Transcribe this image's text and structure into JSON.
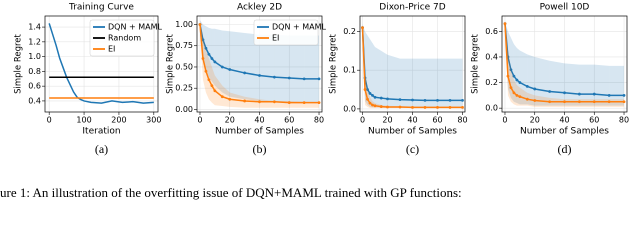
{
  "chart_data": [
    {
      "type": "line",
      "title": "Training Curve",
      "xlabel": "Iteration",
      "ylabel": "Simple Regret",
      "label": "(a)",
      "xlim": [
        -12,
        312
      ],
      "xticks": [
        0,
        100,
        200,
        300
      ],
      "ylim": [
        0.25,
        1.55
      ],
      "yticks": [
        {
          "value": 0.4,
          "label": "0.4"
        },
        {
          "value": 0.6,
          "label": "0.6"
        },
        {
          "value": 0.8,
          "label": "0.8"
        },
        {
          "value": 1.0,
          "label": "1.0"
        },
        {
          "value": 1.2,
          "label": "1.2"
        },
        {
          "value": 1.4,
          "label": "1.4"
        }
      ],
      "grid": true,
      "legend": "upper right",
      "series": [
        {
          "name": "DQN + MAML",
          "color": "#1f77b4",
          "x": [
            0,
            10,
            20,
            30,
            40,
            50,
            60,
            70,
            80,
            90,
            100,
            120,
            150,
            180,
            210,
            240,
            270,
            300
          ],
          "values": [
            1.45,
            1.3,
            1.15,
            0.98,
            0.85,
            0.72,
            0.62,
            0.52,
            0.45,
            0.42,
            0.4,
            0.38,
            0.37,
            0.4,
            0.38,
            0.39,
            0.37,
            0.38
          ]
        },
        {
          "name": "Random",
          "color": "#000000",
          "x": [
            0,
            300
          ],
          "values": [
            0.72,
            0.72
          ]
        },
        {
          "name": "EI",
          "color": "#ff7f0e",
          "x": [
            0,
            300
          ],
          "values": [
            0.44,
            0.44
          ]
        }
      ]
    },
    {
      "type": "line",
      "title": "Ackley 2D",
      "xlabel": "Number of Samples",
      "ylabel": "Simple Regret",
      "label": "(b)",
      "xlim": [
        -2,
        82
      ],
      "xticks": [
        0,
        20,
        40,
        60,
        80
      ],
      "ylim": [
        -0.03,
        1.1
      ],
      "yticks": [
        {
          "value": 0,
          "label": "0.00"
        },
        {
          "value": 0.25,
          "label": "0.25"
        },
        {
          "value": 0.5,
          "label": "0.50"
        },
        {
          "value": 0.75,
          "label": "0.75"
        },
        {
          "value": 1.0,
          "label": "1.00"
        }
      ],
      "grid": true,
      "legend": "upper right",
      "series": [
        {
          "name": "DQN + MAML",
          "color": "#1f77b4",
          "x": [
            0,
            2,
            4,
            6,
            8,
            10,
            15,
            20,
            30,
            40,
            50,
            60,
            70,
            80
          ],
          "values": [
            1.0,
            0.82,
            0.72,
            0.65,
            0.6,
            0.56,
            0.5,
            0.47,
            0.43,
            0.4,
            0.38,
            0.37,
            0.36,
            0.36
          ],
          "upper": [
            1.05,
            1.0,
            0.98,
            0.96,
            0.95,
            0.95,
            0.93,
            0.92,
            0.9,
            0.88,
            0.88,
            0.87,
            0.87,
            0.87
          ],
          "lower": [
            0.9,
            0.6,
            0.45,
            0.38,
            0.33,
            0.28,
            0.2,
            0.15,
            0.12,
            0.1,
            0.09,
            0.08,
            0.08,
            0.08
          ]
        },
        {
          "name": "EI",
          "color": "#ff7f0e",
          "x": [
            0,
            2,
            4,
            6,
            8,
            10,
            15,
            20,
            30,
            40,
            50,
            60,
            70,
            80
          ],
          "values": [
            1.0,
            0.6,
            0.45,
            0.35,
            0.28,
            0.22,
            0.15,
            0.12,
            0.1,
            0.09,
            0.09,
            0.08,
            0.08,
            0.08
          ],
          "upper": [
            1.05,
            0.85,
            0.7,
            0.6,
            0.5,
            0.4,
            0.28,
            0.2,
            0.15,
            0.12,
            0.1,
            0.1,
            0.09,
            0.09
          ],
          "lower": [
            0.9,
            0.35,
            0.2,
            0.12,
            0.08,
            0.05,
            0.04,
            0.03,
            0.02,
            0.02,
            0.02,
            0.02,
            0.02,
            0.02
          ]
        }
      ]
    },
    {
      "type": "line",
      "title": "Dixon-Price 7D",
      "xlabel": "Number of Samples",
      "ylabel": "Simple Regret",
      "label": "(c)",
      "xlim": [
        -2,
        82
      ],
      "xticks": [
        0,
        20,
        40,
        60,
        80
      ],
      "ylim": [
        -0.008,
        0.24
      ],
      "yticks": [
        {
          "value": 0,
          "label": "0.0"
        },
        {
          "value": 0.1,
          "label": "0.1"
        },
        {
          "value": 0.2,
          "label": "0.2"
        }
      ],
      "grid": true,
      "series": [
        {
          "name": "DQN + MAML",
          "color": "#1f77b4",
          "x": [
            0,
            2,
            4,
            6,
            8,
            10,
            15,
            20,
            30,
            40,
            50,
            60,
            70,
            80
          ],
          "values": [
            0.21,
            0.08,
            0.05,
            0.04,
            0.035,
            0.03,
            0.028,
            0.026,
            0.024,
            0.023,
            0.022,
            0.022,
            0.022,
            0.022
          ],
          "upper": [
            0.22,
            0.2,
            0.19,
            0.18,
            0.17,
            0.16,
            0.15,
            0.14,
            0.13,
            0.13,
            0.13,
            0.13,
            0.13,
            0.13
          ],
          "lower": [
            0.2,
            0.02,
            0.01,
            0.005,
            0.004,
            0.004,
            0.003,
            0.003,
            0.003,
            0.003,
            0.003,
            0.003,
            0.003,
            0.003
          ]
        },
        {
          "name": "EI",
          "color": "#ff7f0e",
          "x": [
            0,
            2,
            4,
            6,
            8,
            10,
            15,
            20,
            30,
            40,
            50,
            60,
            70,
            80
          ],
          "values": [
            0.21,
            0.05,
            0.025,
            0.015,
            0.01,
            0.008,
            0.006,
            0.005,
            0.005,
            0.004,
            0.004,
            0.004,
            0.004,
            0.004
          ],
          "upper": [
            0.22,
            0.1,
            0.05,
            0.03,
            0.02,
            0.015,
            0.01,
            0.008,
            0.007,
            0.006,
            0.006,
            0.006,
            0.006,
            0.006
          ],
          "lower": [
            0.2,
            0.01,
            0.005,
            0.002,
            0.002,
            0.002,
            0.002,
            0.002,
            0.002,
            0.002,
            0.002,
            0.002,
            0.002,
            0.002
          ]
        }
      ]
    },
    {
      "type": "line",
      "title": "Powell 10D",
      "xlabel": "Number of Samples",
      "ylabel": "Simple Regret",
      "label": "(d)",
      "xlim": [
        -2,
        82
      ],
      "xticks": [
        0,
        20,
        40,
        60,
        80
      ],
      "ylim": [
        -0.03,
        0.72
      ],
      "yticks": [
        {
          "value": 0,
          "label": "0.0"
        },
        {
          "value": 0.2,
          "label": "0.2"
        },
        {
          "value": 0.4,
          "label": "0.4"
        },
        {
          "value": 0.6,
          "label": "0.6"
        }
      ],
      "grid": true,
      "series": [
        {
          "name": "DQN + MAML",
          "color": "#1f77b4",
          "x": [
            0,
            2,
            4,
            6,
            8,
            10,
            15,
            20,
            30,
            40,
            50,
            60,
            70,
            80
          ],
          "values": [
            0.66,
            0.4,
            0.3,
            0.25,
            0.22,
            0.2,
            0.17,
            0.15,
            0.13,
            0.12,
            0.11,
            0.11,
            0.1,
            0.1
          ],
          "upper": [
            0.68,
            0.6,
            0.55,
            0.5,
            0.47,
            0.45,
            0.42,
            0.4,
            0.37,
            0.35,
            0.34,
            0.34,
            0.33,
            0.33
          ],
          "lower": [
            0.64,
            0.15,
            0.08,
            0.05,
            0.04,
            0.03,
            0.03,
            0.02,
            0.02,
            0.02,
            0.02,
            0.02,
            0.02,
            0.02
          ]
        },
        {
          "name": "EI",
          "color": "#ff7f0e",
          "x": [
            0,
            2,
            4,
            6,
            8,
            10,
            15,
            20,
            30,
            40,
            50,
            60,
            70,
            80
          ],
          "values": [
            0.66,
            0.25,
            0.16,
            0.12,
            0.1,
            0.09,
            0.07,
            0.06,
            0.05,
            0.05,
            0.05,
            0.05,
            0.05,
            0.05
          ],
          "upper": [
            0.68,
            0.45,
            0.3,
            0.22,
            0.18,
            0.16,
            0.12,
            0.1,
            0.08,
            0.07,
            0.07,
            0.07,
            0.07,
            0.07
          ],
          "lower": [
            0.64,
            0.1,
            0.05,
            0.03,
            0.02,
            0.02,
            0.02,
            0.01,
            0.01,
            0.01,
            0.01,
            0.01,
            0.01,
            0.01
          ]
        }
      ]
    }
  ],
  "figure_caption": "ure 1: An illustration of the overfitting issue of DQN+MAML trained with GP functions:"
}
